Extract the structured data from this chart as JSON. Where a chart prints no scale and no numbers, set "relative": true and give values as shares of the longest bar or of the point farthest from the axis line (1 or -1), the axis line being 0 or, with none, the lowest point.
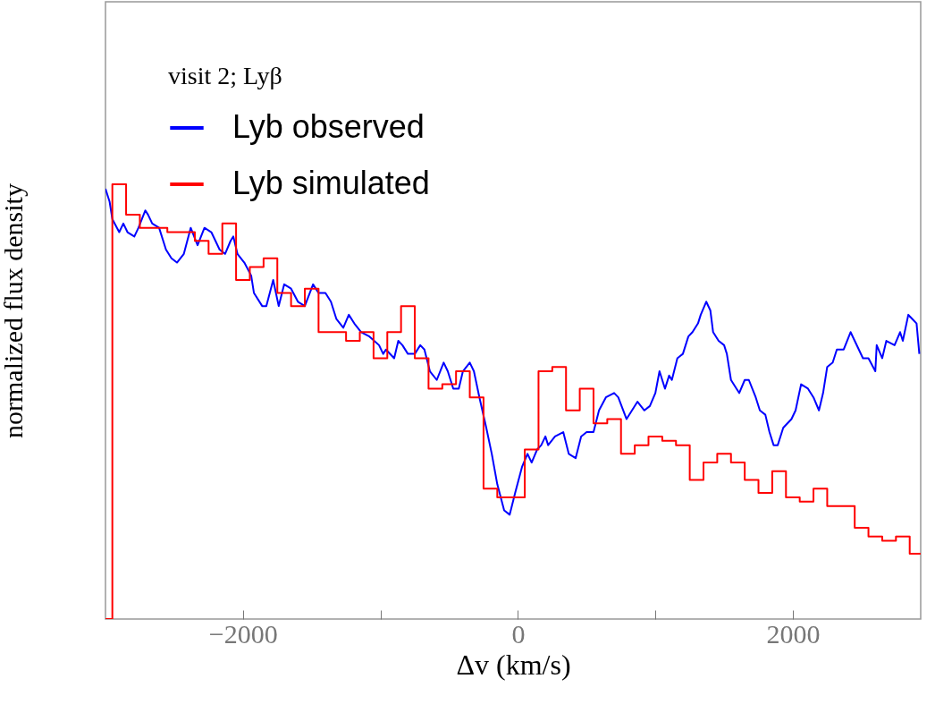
{
  "chart_data": {
    "type": "line",
    "relative": true,
    "xlabel": "Δv (km/s)",
    "ylabel": "normalized flux density",
    "legend_title": "visit 2; Lyβ",
    "legend": "top left",
    "xlim": [
      -3000,
      2930
    ],
    "xticks": [
      -2000,
      {
        "value": -1000,
        "label": null
      },
      0,
      {
        "value": 1000,
        "label": null
      },
      2000
    ],
    "series": [
      {
        "name": "Lyb observed",
        "color": "#0000ff",
        "type": "line",
        "x": [
          -3000,
          -2970,
          -2950,
          -2900,
          -2870,
          -2840,
          -2790,
          -2760,
          -2710,
          -2690,
          -2660,
          -2610,
          -2560,
          -2520,
          -2480,
          -2430,
          -2380,
          -2330,
          -2280,
          -2230,
          -2200,
          -2170,
          -2130,
          -2090,
          -2070,
          -2040,
          -1990,
          -1940,
          -1920,
          -1860,
          -1830,
          -1780,
          -1740,
          -1700,
          -1650,
          -1600,
          -1550,
          -1490,
          -1450,
          -1400,
          -1360,
          -1320,
          -1270,
          -1230,
          -1190,
          -1140,
          -1080,
          -1010,
          -980,
          -960,
          -900,
          -870,
          -840,
          -800,
          -750,
          -710,
          -680,
          -640,
          -590,
          -540,
          -510,
          -470,
          -430,
          -400,
          -350,
          -320,
          -280,
          -230,
          -190,
          -150,
          -100,
          -60,
          -20,
          30,
          70,
          100,
          140,
          170,
          200,
          220,
          270,
          330,
          370,
          420,
          460,
          500,
          550,
          590,
          640,
          700,
          730,
          790,
          830,
          870,
          920,
          960,
          1000,
          1030,
          1070,
          1100,
          1120,
          1160,
          1200,
          1240,
          1270,
          1310,
          1330,
          1370,
          1400,
          1420,
          1460,
          1500,
          1520,
          1550,
          1590,
          1610,
          1650,
          1680,
          1730,
          1760,
          1800,
          1830,
          1860,
          1890,
          1930,
          1990,
          2020,
          2060,
          2110,
          2150,
          2190,
          2220,
          2250,
          2290,
          2320,
          2370,
          2420,
          2450,
          2510,
          2550,
          2600,
          2610,
          2650,
          2680,
          2740,
          2780,
          2800,
          2840,
          2870,
          2900,
          2920
        ],
        "values": [
          0.99,
          0.96,
          0.92,
          0.89,
          0.91,
          0.89,
          0.88,
          0.9,
          0.94,
          0.93,
          0.91,
          0.9,
          0.85,
          0.83,
          0.82,
          0.84,
          0.9,
          0.86,
          0.9,
          0.89,
          0.87,
          0.85,
          0.84,
          0.87,
          0.88,
          0.84,
          0.82,
          0.79,
          0.75,
          0.72,
          0.72,
          0.78,
          0.72,
          0.77,
          0.76,
          0.73,
          0.72,
          0.77,
          0.75,
          0.75,
          0.73,
          0.69,
          0.67,
          0.7,
          0.68,
          0.66,
          0.65,
          0.63,
          0.61,
          0.62,
          0.6,
          0.64,
          0.63,
          0.61,
          0.61,
          0.63,
          0.62,
          0.57,
          0.55,
          0.59,
          0.57,
          0.53,
          0.53,
          0.57,
          0.59,
          0.57,
          0.51,
          0.44,
          0.38,
          0.31,
          0.25,
          0.24,
          0.29,
          0.35,
          0.38,
          0.36,
          0.39,
          0.4,
          0.42,
          0.4,
          0.42,
          0.43,
          0.38,
          0.37,
          0.42,
          0.43,
          0.43,
          0.48,
          0.51,
          0.52,
          0.51,
          0.46,
          0.48,
          0.5,
          0.48,
          0.49,
          0.52,
          0.57,
          0.53,
          0.56,
          0.55,
          0.6,
          0.61,
          0.65,
          0.66,
          0.68,
          0.7,
          0.73,
          0.71,
          0.66,
          0.64,
          0.63,
          0.61,
          0.55,
          0.53,
          0.52,
          0.55,
          0.55,
          0.51,
          0.48,
          0.47,
          0.43,
          0.4,
          0.4,
          0.44,
          0.46,
          0.48,
          0.54,
          0.53,
          0.51,
          0.48,
          0.52,
          0.58,
          0.59,
          0.62,
          0.62,
          0.66,
          0.64,
          0.6,
          0.6,
          0.57,
          0.63,
          0.6,
          0.64,
          0.63,
          0.66,
          0.64,
          0.7,
          0.69,
          0.68,
          0.61
        ]
      },
      {
        "name": "Lyb simulated",
        "color": "#ff0000",
        "type": "step",
        "x": [
          -3000,
          -2950,
          -2850,
          -2750,
          -2650,
          -2550,
          -2450,
          -2350,
          -2250,
          -2150,
          -2050,
          -1950,
          -1850,
          -1750,
          -1650,
          -1550,
          -1450,
          -1350,
          -1250,
          -1150,
          -1050,
          -950,
          -850,
          -750,
          -650,
          -550,
          -450,
          -350,
          -250,
          -150,
          -50,
          50,
          150,
          250,
          350,
          450,
          550,
          650,
          750,
          850,
          950,
          1050,
          1150,
          1250,
          1350,
          1450,
          1550,
          1650,
          1750,
          1850,
          1950,
          2050,
          2150,
          2250,
          2350,
          2450,
          2550,
          2650,
          2750,
          2850,
          2930
        ],
        "values": [
          0,
          1.0,
          0.93,
          0.9,
          0.9,
          0.89,
          0.89,
          0.87,
          0.84,
          0.91,
          0.78,
          0.81,
          0.83,
          0.75,
          0.72,
          0.76,
          0.66,
          0.66,
          0.64,
          0.66,
          0.6,
          0.66,
          0.72,
          0.6,
          0.53,
          0.54,
          0.57,
          0.51,
          0.3,
          0.28,
          0.28,
          0.39,
          0.57,
          0.58,
          0.48,
          0.53,
          0.45,
          0.46,
          0.38,
          0.4,
          0.42,
          0.41,
          0.4,
          0.32,
          0.36,
          0.38,
          0.36,
          0.32,
          0.29,
          0.34,
          0.28,
          0.27,
          0.3,
          0.26,
          0.26,
          0.21,
          0.19,
          0.18,
          0.19,
          0.15,
          0.15
        ]
      }
    ]
  }
}
